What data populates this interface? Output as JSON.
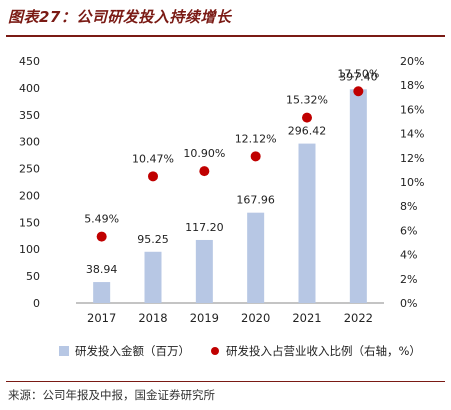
{
  "figure": {
    "title": "图表27：公司研发投入持续增长",
    "source": "来源：公司年报及中报，国金证券研究所"
  },
  "chart_data": {
    "type": "bar",
    "categories": [
      "2017",
      "2018",
      "2019",
      "2020",
      "2021",
      "2022"
    ],
    "series": [
      {
        "name": "研发投入金额（百万）",
        "kind": "bar",
        "axis": "left",
        "values": [
          38.94,
          95.25,
          117.2,
          167.96,
          296.42,
          397.4
        ],
        "labels": [
          "38.94",
          "95.25",
          "117.20",
          "167.96",
          "296.42",
          "397.40"
        ],
        "color": "#b7c7e4"
      },
      {
        "name": "研发投入占营业收入比例（右轴，%）",
        "kind": "scatter",
        "axis": "right",
        "values": [
          5.49,
          10.47,
          10.9,
          12.12,
          15.32,
          17.5
        ],
        "labels": [
          "5.49%",
          "10.47%",
          "10.90%",
          "12.12%",
          "15.32%",
          "17.50%"
        ],
        "color": "#c00000"
      }
    ],
    "y_left": {
      "lim": [
        0,
        450
      ],
      "ticks": [
        "0",
        "50",
        "100",
        "150",
        "200",
        "250",
        "300",
        "350",
        "400",
        "450"
      ]
    },
    "y_right": {
      "lim": [
        0,
        20
      ],
      "ticks": [
        "0%",
        "2%",
        "4%",
        "6%",
        "8%",
        "10%",
        "12%",
        "14%",
        "16%",
        "18%",
        "20%"
      ]
    },
    "legend_position": "bottom",
    "grid": false
  }
}
